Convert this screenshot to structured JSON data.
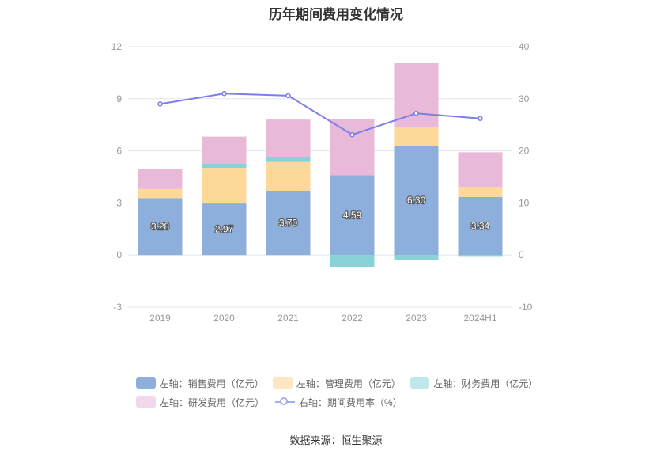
{
  "chart_data": {
    "type": "bar",
    "title": "历年期间费用变化情况",
    "categories": [
      "2019",
      "2020",
      "2021",
      "2022",
      "2023",
      "2024H1"
    ],
    "left_axis": {
      "ylim": [
        -3,
        12
      ],
      "ticks": [
        -3,
        0,
        3,
        6,
        9,
        12
      ]
    },
    "right_axis": {
      "ylim": [
        -10,
        40
      ],
      "ticks": [
        -10,
        0,
        10,
        20,
        30,
        40
      ]
    },
    "series": [
      {
        "name": "左轴：销售费用（亿元）",
        "axis": "left",
        "color": "#8eafdc",
        "values": [
          3.28,
          2.97,
          3.7,
          4.59,
          6.3,
          3.34
        ]
      },
      {
        "name": "左轴：管理费用（亿元）",
        "axis": "left",
        "color": "#fdd898",
        "values": [
          0.52,
          2.05,
          1.65,
          0.0,
          1.05,
          0.58
        ]
      },
      {
        "name": "左轴：财务费用（亿元）",
        "axis": "left",
        "color": "#89d3d8",
        "values": [
          0.0,
          0.25,
          0.3,
          -0.72,
          -0.3,
          -0.1
        ]
      },
      {
        "name": "左轴：研发费用（亿元）",
        "axis": "left",
        "color": "#e8b9d9",
        "values": [
          1.18,
          1.55,
          2.15,
          3.23,
          3.7,
          2.0
        ]
      },
      {
        "name": "右轴：期间费用率（%）",
        "axis": "right",
        "type": "line",
        "color": "#7b7ee9",
        "values": [
          29.0,
          31.0,
          30.6,
          23.1,
          27.2,
          26.2
        ]
      }
    ],
    "data_labels": [
      "3.28",
      "2.97",
      "3.70",
      "4.59",
      "6.30",
      "3.34"
    ],
    "legend_position": "bottom",
    "grid": true
  },
  "source": "数据来源：恒生聚源"
}
